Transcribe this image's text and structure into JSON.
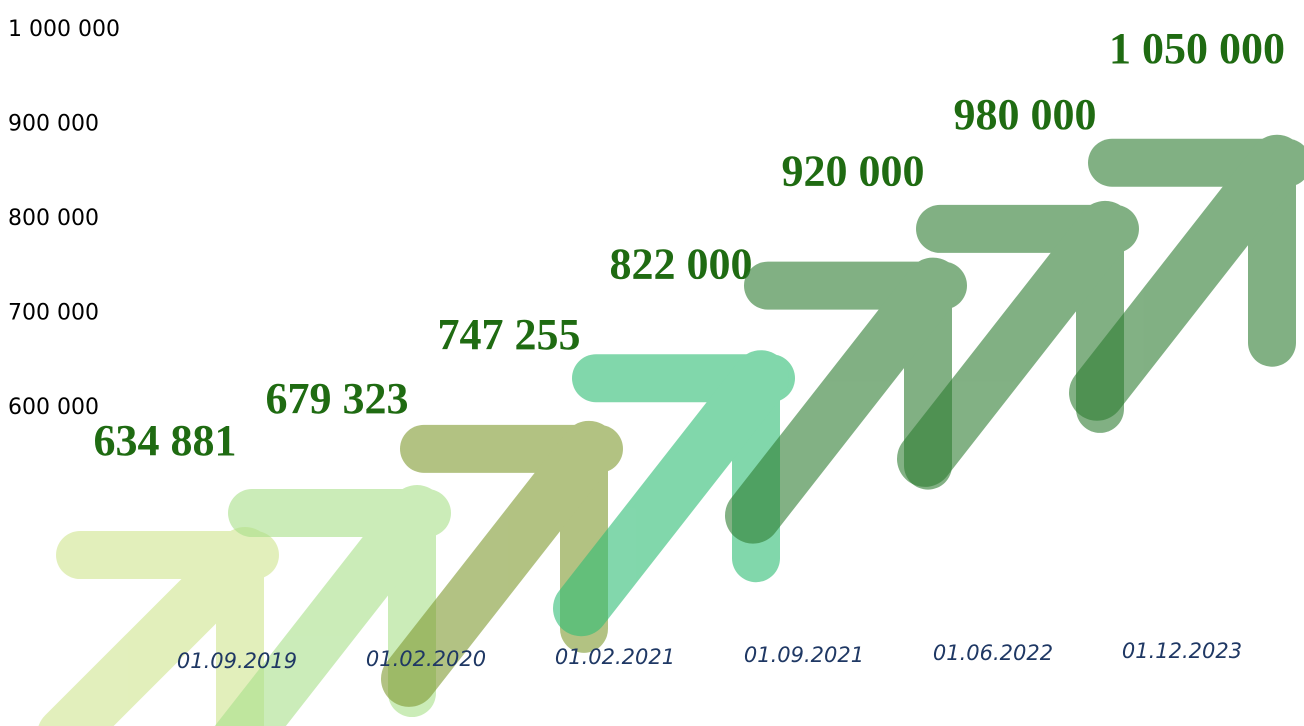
{
  "chart_data": {
    "type": "arrows",
    "categories": [
      null,
      "01.09.2019",
      "01.02.2020",
      "01.02.2021",
      "01.09.2021",
      "01.06.2022",
      "01.12.2023"
    ],
    "values": [
      634881,
      679323,
      747255,
      822000,
      920000,
      980000,
      1050000
    ],
    "value_labels": [
      "634 881",
      "679 323",
      "747 255",
      "822 000",
      "920 000",
      "980 000",
      "1 050 000"
    ],
    "colors": [
      "#cfe58f",
      "#a9e08a",
      "#7f9a30",
      "#2ebd74",
      "#2e7d32",
      "#2e7d32",
      "#2e7d32"
    ],
    "label_color": "#1f6b12",
    "ylim": [
      263000,
      1032000
    ],
    "yticks": [
      {
        "value": 1000000,
        "label": "1 000 000"
      },
      {
        "value": 900000,
        "label": "900 000"
      },
      {
        "value": 800000,
        "label": "800 000"
      },
      {
        "value": 700000,
        "label": "700 000"
      },
      {
        "value": 600000,
        "label": "600 000"
      }
    ]
  }
}
